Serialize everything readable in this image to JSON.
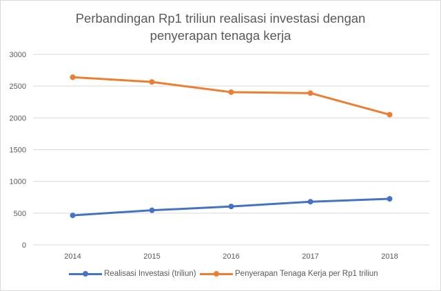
{
  "chart_data": {
    "type": "line",
    "title": "Perbandingan Rp1 triliun realisasi investasi  dengan penyerapan tenaga kerja",
    "title_lines": [
      "Perbandingan Rp1 triliun realisasi investasi  dengan",
      "penyerapan tenaga kerja"
    ],
    "xlabel": "",
    "ylabel": "",
    "categories": [
      "2014",
      "2015",
      "2016",
      "2017",
      "2018"
    ],
    "y_ticks": [
      "0",
      "500",
      "1000",
      "1500",
      "2000",
      "2500",
      "3000"
    ],
    "ylim": [
      0,
      3000
    ],
    "grid": true,
    "legend_position": "bottom",
    "series": [
      {
        "name": "Realisasi Investasi (triliun)",
        "color": "#4472c4",
        "values": [
          465,
          545,
          605,
          680,
          725
        ]
      },
      {
        "name": "Penyerapan Tenaga Kerja per Rp1 triliun",
        "color": "#ed7d31",
        "values": [
          2640,
          2565,
          2405,
          2390,
          2050
        ]
      }
    ]
  },
  "colors": {
    "grid": "#d9d9d9",
    "text": "#595959",
    "border": "#d9d9d9"
  }
}
